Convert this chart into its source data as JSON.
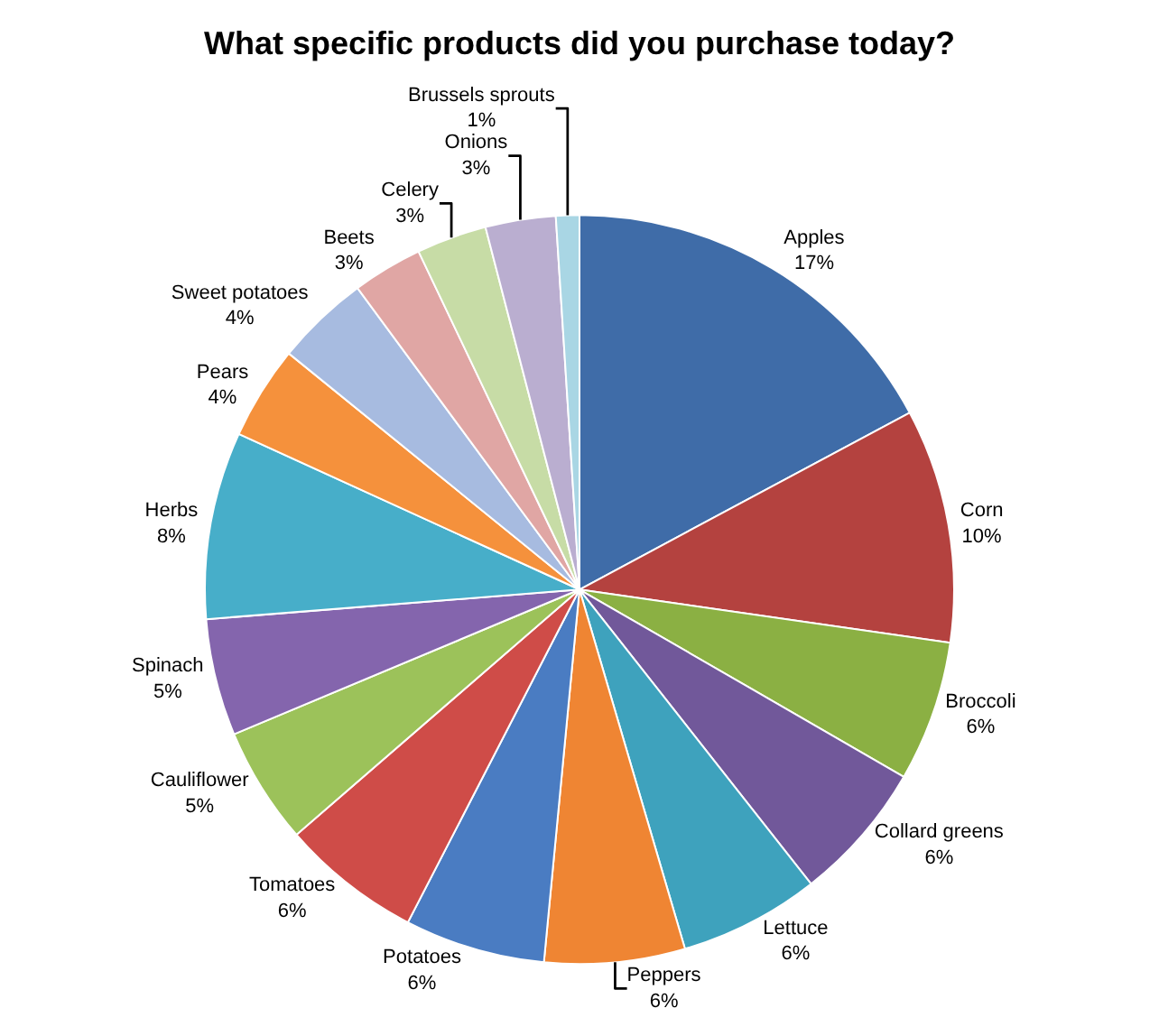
{
  "chart_data": {
    "type": "pie",
    "title": "What specific products did you purchase today?",
    "categories": [
      "Apples",
      "Corn",
      "Broccoli",
      "Collard greens",
      "Lettuce",
      "Peppers",
      "Potatoes",
      "Tomatoes",
      "Cauliflower",
      "Spinach",
      "Herbs",
      "Pears",
      "Sweet potatoes",
      "Beets",
      "Celery",
      "Onions",
      "Brussels sprouts"
    ],
    "values": [
      17,
      10,
      6,
      6,
      6,
      6,
      6,
      6,
      5,
      5,
      8,
      4,
      4,
      3,
      3,
      3,
      1
    ],
    "value_labels": [
      "17%",
      "10%",
      "6%",
      "6%",
      "6%",
      "6%",
      "6%",
      "6%",
      "5%",
      "5%",
      "8%",
      "4%",
      "4%",
      "3%",
      "3%",
      "3%",
      "1%"
    ],
    "colors": [
      "#3f6ca8",
      "#b4423f",
      "#8bb043",
      "#71589a",
      "#3ea2bd",
      "#ef8533",
      "#4a7cc2",
      "#cf4c48",
      "#9cc25a",
      "#8465ad",
      "#47aec9",
      "#f5913c",
      "#a7bbe0",
      "#e0a6a4",
      "#c7dca6",
      "#baaed0",
      "#a9d6e4"
    ],
    "legend": false
  }
}
